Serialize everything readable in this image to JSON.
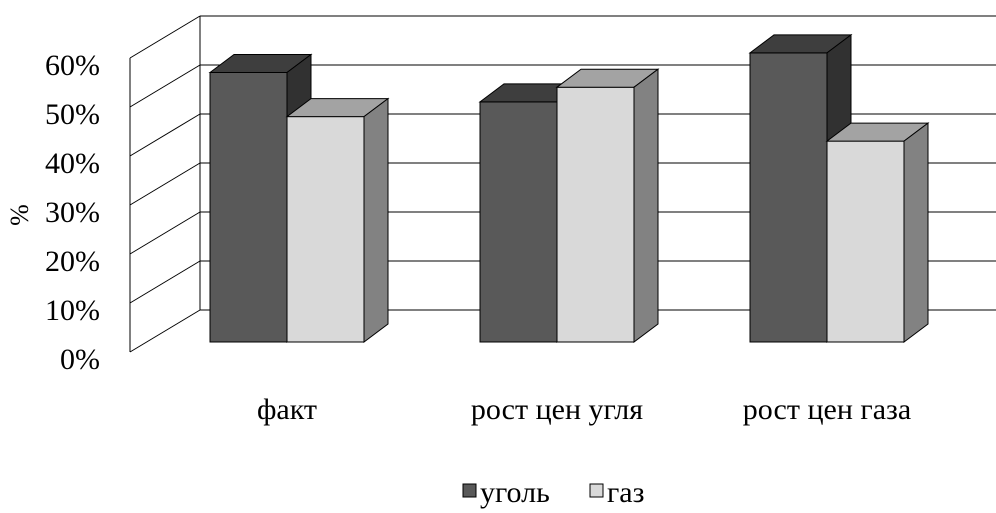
{
  "chart_data": {
    "type": "bar3d",
    "y_label": "%",
    "categories": [
      "факт",
      "рост цен угля",
      "рост цен газа"
    ],
    "series": [
      {
        "name": "уголь",
        "color": "#595959",
        "values": [
          55,
          49,
          59
        ]
      },
      {
        "name": "газ",
        "color": "#d9d9d9",
        "values": [
          46,
          52,
          41
        ]
      }
    ],
    "ylim": [
      0,
      60
    ],
    "yticks": [
      {
        "value": 0,
        "label": "0%"
      },
      {
        "value": 10,
        "label": "10%"
      },
      {
        "value": 20,
        "label": "20%"
      },
      {
        "value": 30,
        "label": "30%"
      },
      {
        "value": 40,
        "label": "40%"
      },
      {
        "value": 50,
        "label": "50%"
      },
      {
        "value": 60,
        "label": "60%"
      }
    ],
    "grid": true,
    "legend": "bottom"
  }
}
